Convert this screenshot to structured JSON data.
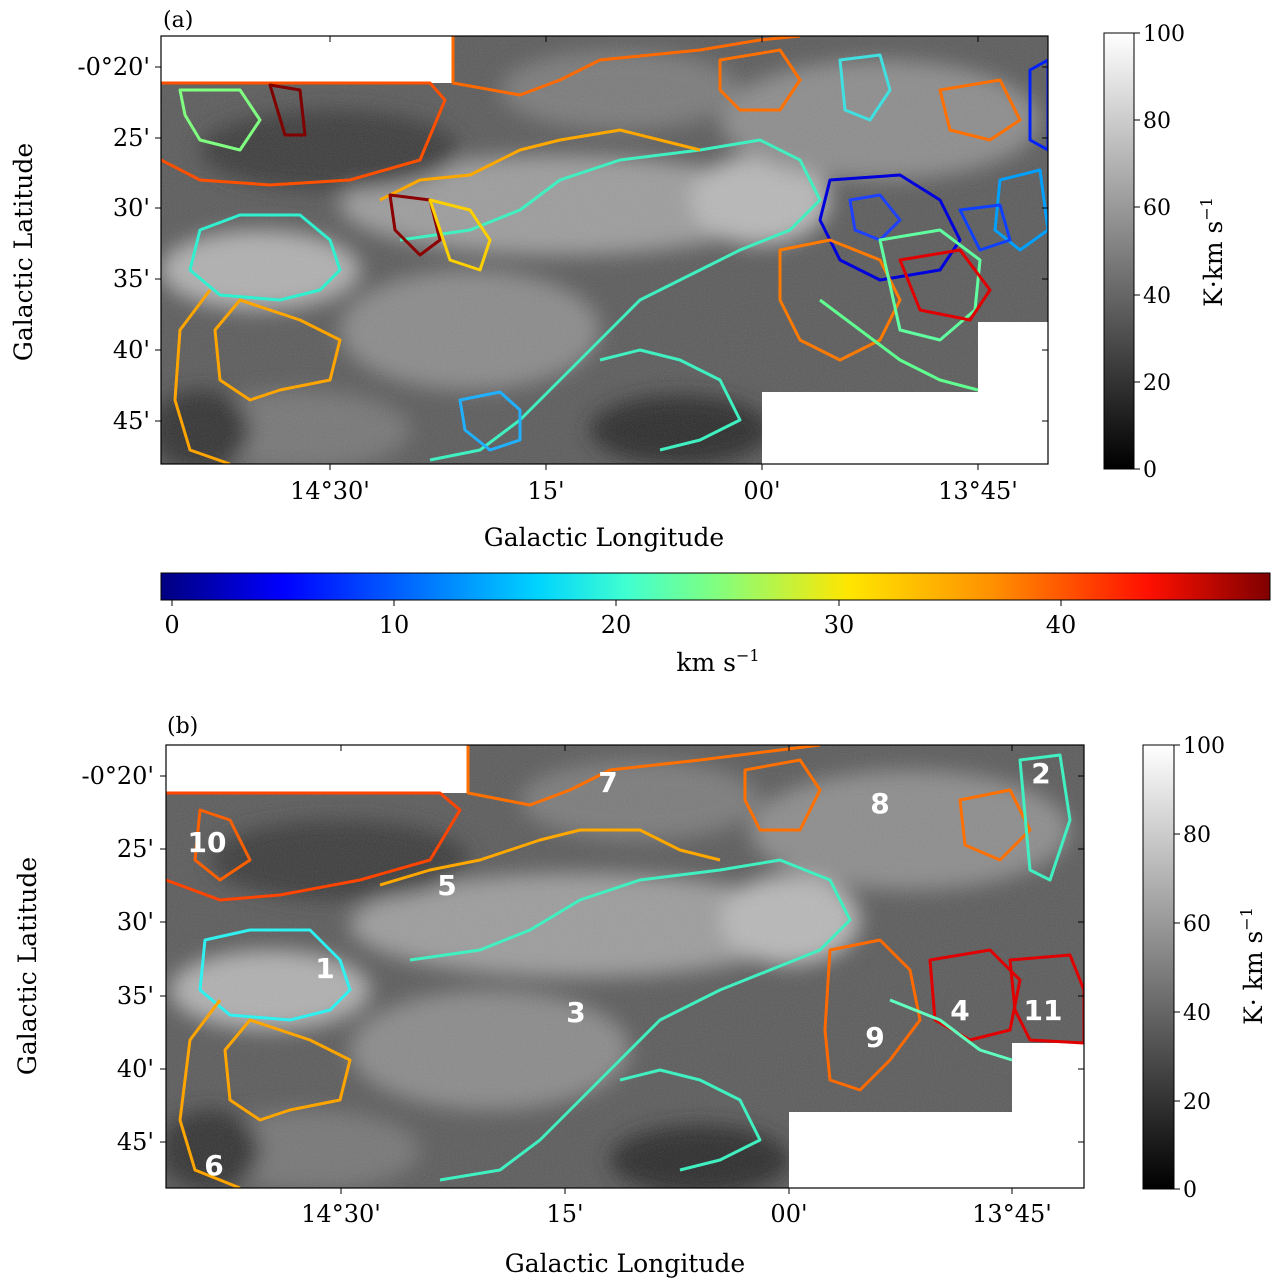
{
  "panels": [
    {
      "label": "(a)",
      "xlabel": "Galactic Longitude",
      "ylabel": "Galactic Latitude",
      "x_ticks": [
        "14°30'",
        "15'",
        "00'",
        "13°45'"
      ],
      "y_ticks": [
        "-0°20'",
        "25'",
        "30'",
        "35'",
        "40'",
        "45'"
      ],
      "colorbar": {
        "label": "K·km s",
        "exponent": "−1",
        "ticks": [
          "100",
          "80",
          "60",
          "40",
          "20",
          "0"
        ]
      }
    },
    {
      "label": "(b)",
      "xlabel": "Galactic Longitude",
      "ylabel": "Galactic Latitude",
      "x_ticks": [
        "14°30'",
        "15'",
        "00'",
        "13°45'"
      ],
      "y_ticks": [
        "-0°20'",
        "25'",
        "30'",
        "35'",
        "40'",
        "45'"
      ],
      "colorbar": {
        "label": "K· km s",
        "exponent": "−1",
        "ticks": [
          "100",
          "80",
          "60",
          "40",
          "20",
          "0"
        ]
      },
      "region_labels": [
        "1",
        "2",
        "3",
        "4",
        "5",
        "6",
        "7",
        "8",
        "9",
        "10",
        "11"
      ]
    }
  ],
  "velocity_colorbar": {
    "label": "km s",
    "exponent": "−1",
    "ticks": [
      "0",
      "10",
      "20",
      "30",
      "40"
    ],
    "colormap": "jet"
  },
  "chart_data": [
    {
      "type": "heatmap",
      "title": "(a)",
      "description_axes": "Galactic coordinates",
      "xlabel": "Galactic Longitude",
      "ylabel": "Galactic Latitude",
      "x_tick_labels": [
        "14°30'",
        "15'",
        "00'",
        "13°45'"
      ],
      "y_tick_labels": [
        "-0°20'",
        "25'",
        "30'",
        "35'",
        "40'",
        "45'"
      ],
      "intensity_colorbar": {
        "label": "K·km s−1",
        "range": [
          0,
          100
        ],
        "colormap": "gray"
      },
      "contour_velocity_range_kms": [
        0,
        50
      ],
      "contour_colors_present": [
        "#00007f",
        "#0050ff",
        "#00bfff",
        "#40ffd0",
        "#80ff80",
        "#ffd000",
        "#ffa000",
        "#ff6000",
        "#e00000",
        "#800000"
      ]
    },
    {
      "type": "heatmap",
      "title": "(b)",
      "xlabel": "Galactic Longitude",
      "ylabel": "Galactic Latitude",
      "x_tick_labels": [
        "14°30'",
        "15'",
        "00'",
        "13°45'"
      ],
      "y_tick_labels": [
        "-0°20'",
        "25'",
        "30'",
        "35'",
        "40'",
        "45'"
      ],
      "intensity_colorbar": {
        "label": "K· km s−1",
        "range": [
          0,
          100
        ],
        "colormap": "gray"
      },
      "regions": [
        "1",
        "2",
        "3",
        "4",
        "5",
        "6",
        "7",
        "8",
        "9",
        "10",
        "11"
      ]
    },
    {
      "type": "colorbar",
      "label": "km s−1",
      "range": [
        0,
        50
      ],
      "ticks": [
        0,
        10,
        20,
        30,
        40
      ],
      "colormap": "jet"
    }
  ]
}
